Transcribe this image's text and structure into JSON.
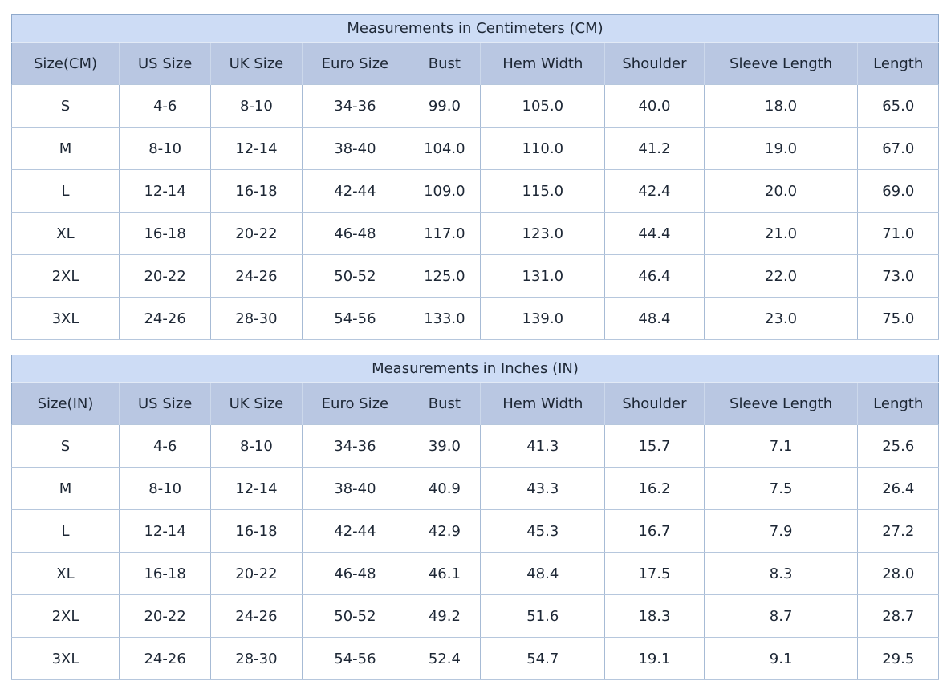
{
  "colors": {
    "title_bg": "#cddcf5",
    "header_bg": "#b9c7e2",
    "outer_border": "#8fa9cb",
    "inner_border": "#a7bbd5",
    "text": "#1d2735",
    "cell_bg": "#ffffff"
  },
  "tables": [
    {
      "title": "Measurements in Centimeters (CM)",
      "columns": [
        "Size(CM)",
        "US Size",
        "UK Size",
        "Euro Size",
        "Bust",
        "Hem Width",
        "Shoulder",
        "Sleeve Length",
        "Length"
      ],
      "rows": [
        [
          "S",
          "4-6",
          "8-10",
          "34-36",
          "99.0",
          "105.0",
          "40.0",
          "18.0",
          "65.0"
        ],
        [
          "M",
          "8-10",
          "12-14",
          "38-40",
          "104.0",
          "110.0",
          "41.2",
          "19.0",
          "67.0"
        ],
        [
          "L",
          "12-14",
          "16-18",
          "42-44",
          "109.0",
          "115.0",
          "42.4",
          "20.0",
          "69.0"
        ],
        [
          "XL",
          "16-18",
          "20-22",
          "46-48",
          "117.0",
          "123.0",
          "44.4",
          "21.0",
          "71.0"
        ],
        [
          "2XL",
          "20-22",
          "24-26",
          "50-52",
          "125.0",
          "131.0",
          "46.4",
          "22.0",
          "73.0"
        ],
        [
          "3XL",
          "24-26",
          "28-30",
          "54-56",
          "133.0",
          "139.0",
          "48.4",
          "23.0",
          "75.0"
        ]
      ]
    },
    {
      "title": "Measurements in Inches (IN)",
      "columns": [
        "Size(IN)",
        "US Size",
        "UK Size",
        "Euro Size",
        "Bust",
        "Hem Width",
        "Shoulder",
        "Sleeve Length",
        "Length"
      ],
      "rows": [
        [
          "S",
          "4-6",
          "8-10",
          "34-36",
          "39.0",
          "41.3",
          "15.7",
          "7.1",
          "25.6"
        ],
        [
          "M",
          "8-10",
          "12-14",
          "38-40",
          "40.9",
          "43.3",
          "16.2",
          "7.5",
          "26.4"
        ],
        [
          "L",
          "12-14",
          "16-18",
          "42-44",
          "42.9",
          "45.3",
          "16.7",
          "7.9",
          "27.2"
        ],
        [
          "XL",
          "16-18",
          "20-22",
          "46-48",
          "46.1",
          "48.4",
          "17.5",
          "8.3",
          "28.0"
        ],
        [
          "2XL",
          "20-22",
          "24-26",
          "50-52",
          "49.2",
          "51.6",
          "18.3",
          "8.7",
          "28.7"
        ],
        [
          "3XL",
          "24-26",
          "28-30",
          "54-56",
          "52.4",
          "54.7",
          "19.1",
          "9.1",
          "29.5"
        ]
      ]
    }
  ]
}
